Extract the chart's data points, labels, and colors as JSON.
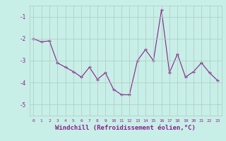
{
  "x": [
    0,
    1,
    2,
    3,
    4,
    5,
    6,
    7,
    8,
    9,
    10,
    11,
    12,
    13,
    14,
    15,
    16,
    17,
    18,
    19,
    20,
    21,
    22,
    23
  ],
  "y": [
    -2.0,
    -2.15,
    -2.1,
    -3.1,
    -3.3,
    -3.5,
    -3.75,
    -3.3,
    -3.85,
    -3.55,
    -4.3,
    -4.55,
    -4.55,
    -3.0,
    -2.5,
    -3.0,
    -0.7,
    -3.55,
    -2.7,
    -3.75,
    -3.5,
    -3.1,
    -3.55,
    -3.9
  ],
  "line_color": "#882288",
  "marker": "+",
  "markersize": 3,
  "linewidth": 0.8,
  "xlabel": "Windchill (Refroidissement éolien,°C)",
  "xlabel_fontsize": 6.5,
  "bg_color": "#c8eee8",
  "grid_color": "#aaccbb",
  "ylim": [
    -5.5,
    -0.5
  ],
  "xlim": [
    -0.5,
    23.5
  ],
  "yticks": [
    -5,
    -4,
    -3,
    -2,
    -1
  ],
  "xticks": [
    0,
    1,
    2,
    3,
    4,
    5,
    6,
    7,
    8,
    9,
    10,
    11,
    12,
    13,
    14,
    15,
    16,
    17,
    18,
    19,
    20,
    21,
    22,
    23
  ]
}
